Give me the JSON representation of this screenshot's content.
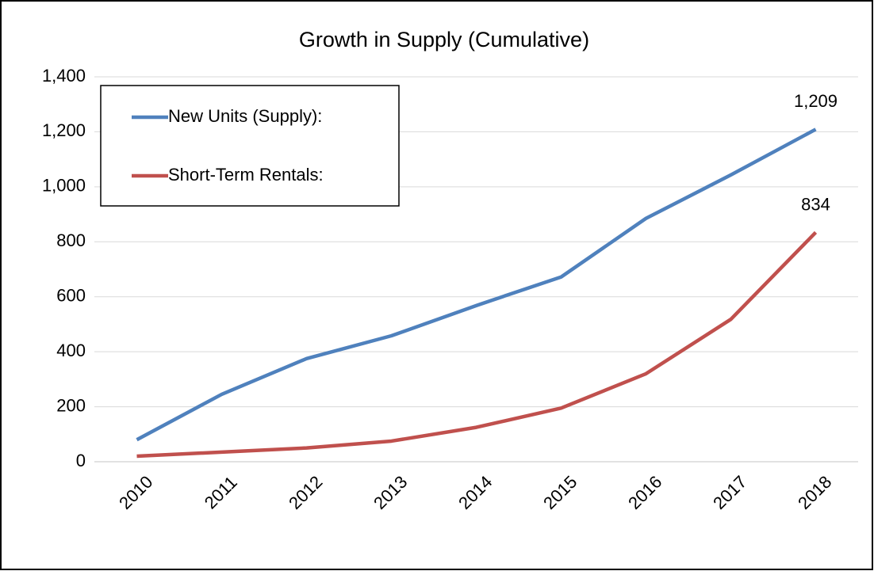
{
  "chart_data": {
    "type": "line",
    "title": "Growth in Supply (Cumulative)",
    "categories": [
      "2010",
      "2011",
      "2012",
      "2013",
      "2014",
      "2015",
      "2016",
      "2017",
      "2018"
    ],
    "series": [
      {
        "name": "New Units (Supply):",
        "color": "#4f81bd",
        "values": [
          80,
          245,
          375,
          458,
          568,
          672,
          885,
          1043,
          1209
        ],
        "value_labels": [
          null,
          null,
          null,
          null,
          null,
          null,
          null,
          null,
          "1,209"
        ]
      },
      {
        "name": "Short-Term Rentals:",
        "color": "#c0504d",
        "values": [
          20,
          35,
          50,
          75,
          125,
          195,
          320,
          518,
          834
        ],
        "value_labels": [
          null,
          null,
          null,
          null,
          null,
          null,
          null,
          null,
          "834"
        ]
      }
    ],
    "ylim": [
      0,
      1400
    ],
    "yticks": [
      0,
      200,
      400,
      600,
      800,
      {
        "value": 1000,
        "label": "1,000"
      },
      {
        "value": 1200,
        "label": "1,200"
      },
      {
        "value": 1400,
        "label": "1,400"
      }
    ],
    "grid": true,
    "legend": "upper left"
  }
}
